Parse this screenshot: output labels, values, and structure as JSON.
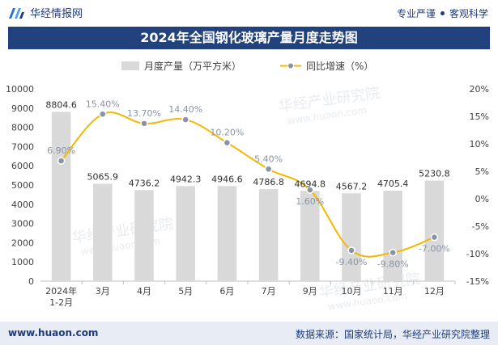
{
  "header": {
    "brand_name": "华经情报网",
    "tagline_left": "专业严谨",
    "tagline_right": "客观科学"
  },
  "watermarks": [
    "华经产业研究院",
    "www.huaon.com"
  ],
  "chart_data": {
    "type": "bar+line",
    "title": "2024年全国钢化玻璃产量月度走势图",
    "categories": [
      "2024年 1-2月",
      "3月",
      "4月",
      "5月",
      "6月",
      "7月",
      "9月",
      "10月",
      "11月",
      "12月"
    ],
    "series": [
      {
        "name": "月度产量（万平方米）",
        "type": "bar",
        "axis": "left",
        "values": [
          8804.6,
          5065.9,
          4736.2,
          4942.3,
          4946.6,
          4786.8,
          4694.8,
          4567.2,
          4705.4,
          5230.8
        ],
        "labels": [
          "8804.6",
          "5065.9",
          "4736.2",
          "4942.3",
          "4946.6",
          "4786.8",
          "4694.8",
          "4567.2",
          "4705.4",
          "5230.8"
        ],
        "color": "#d9d9d9"
      },
      {
        "name": "同比增速（%）",
        "type": "line",
        "axis": "right",
        "values": [
          6.9,
          15.4,
          13.7,
          14.4,
          10.2,
          5.4,
          1.6,
          -9.4,
          -9.8,
          -7.0
        ],
        "labels": [
          "6.90%",
          "15.40%",
          "13.70%",
          "14.40%",
          "10.20%",
          "5.40%",
          "1.60%",
          "-9.40%",
          "-9.80%",
          "-7.00%"
        ],
        "color": "#f5b800",
        "marker_color": "#8a93a5"
      }
    ],
    "y_left": {
      "min": 0,
      "max": 10000,
      "step": 1000,
      "ticks": [
        "0",
        "1000",
        "2000",
        "3000",
        "4000",
        "5000",
        "6000",
        "7000",
        "8000",
        "9000",
        "10000"
      ]
    },
    "y_right": {
      "min": -15,
      "max": 20,
      "step": 5,
      "ticks": [
        "-15%",
        "-10%",
        "-5%",
        "0%",
        "5%",
        "10%",
        "15%",
        "20%"
      ]
    },
    "legend_position": "top-center",
    "grid": false
  },
  "footer": {
    "site": "www.huaon.com",
    "source": "数据来源：国家统计局，华经产业研究院整理"
  }
}
